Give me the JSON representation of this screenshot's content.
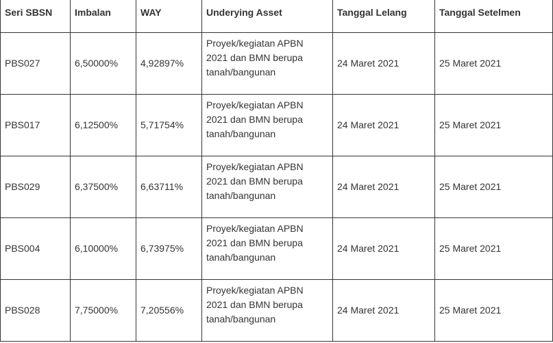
{
  "table": {
    "headers": [
      "Seri SBSN",
      "Imbalan",
      "WAY",
      "Underying Asset",
      "Tanggal Lelang",
      "Tanggal Setelmen"
    ],
    "rows": [
      {
        "seri": "PBS027",
        "imbalan": "6,50000%",
        "way": "4,92897%",
        "asset_lines": [
          "Proyek/kegiatan APBN",
          "2021 dan BMN berupa",
          "tanah/bangunan"
        ],
        "lelang": "24 Maret 2021",
        "setelmen": "25 Maret 2021"
      },
      {
        "seri": "PBS017",
        "imbalan": "6,12500%",
        "way": "5,71754%",
        "asset_lines": [
          "Proyek/kegiatan APBN",
          "2021 dan BMN berupa",
          "tanah/bangunan"
        ],
        "lelang": "24 Maret 2021",
        "setelmen": "25 Maret 2021"
      },
      {
        "seri": "PBS029",
        "imbalan": "6,37500%",
        "way": "6,63711%",
        "asset_lines": [
          "Proyek/kegiatan APBN",
          "2021 dan BMN berupa",
          "tanah/bangunan"
        ],
        "lelang": "24 Maret 2021",
        "setelmen": "25 Maret 2021"
      },
      {
        "seri": "PBS004",
        "imbalan": "6,10000%",
        "way": "6,73975%",
        "asset_lines": [
          "Proyek/kegiatan APBN",
          "2021 dan BMN berupa",
          "tanah/bangunan"
        ],
        "lelang": "24 Maret 2021",
        "setelmen": "25 Maret 2021"
      },
      {
        "seri": "PBS028",
        "imbalan": "7,75000%",
        "way": "7,20556%",
        "asset_lines": [
          "Proyek/kegiatan APBN",
          "2021 dan BMN berupa",
          "tanah/bangunan"
        ],
        "lelang": "24 Maret 2021",
        "setelmen": "25 Maret 2021"
      }
    ]
  }
}
